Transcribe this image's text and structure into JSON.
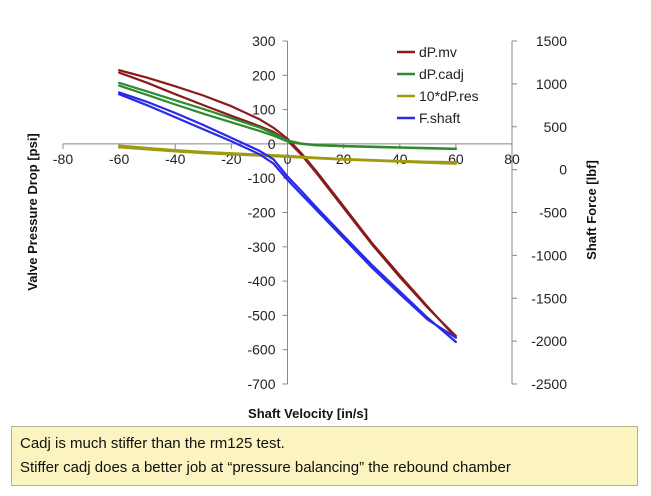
{
  "chart_data": {
    "type": "line",
    "xlabel": "Shaft Velocity [in/s]",
    "ylabel": "Valve Pressure Drop [psi]",
    "y2label": "Shaft Force [lbf]",
    "xlim": [
      -80,
      80
    ],
    "ylim": [
      -700,
      300
    ],
    "y2lim": [
      -2500,
      1500
    ],
    "x_ticks": [
      -80,
      -60,
      -40,
      -20,
      0,
      20,
      40,
      60,
      80
    ],
    "x_tick_labels": [
      "-80",
      "-60",
      "-40",
      "-20",
      "0",
      "20",
      "40",
      "60",
      "80"
    ],
    "y_ticks": [
      300,
      200,
      100,
      0,
      -100,
      -200,
      -300,
      -400,
      -500,
      -600,
      -700
    ],
    "y_tick_labels": [
      "300",
      "200",
      "100",
      "0",
      "-100",
      "-200",
      "-300",
      "-400",
      "-500",
      "-600",
      "-700"
    ],
    "y2_ticks": [
      1500,
      1000,
      500,
      0,
      -500,
      -1000,
      -1500,
      -2000,
      -2500
    ],
    "y2_tick_labels": [
      "1500",
      "1000",
      "500",
      "0",
      "-500",
      "-1000",
      "-1500",
      "-2000",
      "-2500"
    ],
    "grid": false,
    "legend_position": "top-right",
    "series": [
      {
        "name": "dP.mv",
        "color": "#8b1a1a",
        "axis": "left",
        "loops": [
          {
            "x": [
              -60,
              -50,
              -40,
              -30,
              -20,
              -10,
              -5,
              0,
              5,
              10,
              20,
              30,
              40,
              50,
              60
            ],
            "y": [
              215,
              193,
              168,
              141,
              110,
              72,
              47,
              15,
              -28,
              -77,
              -182,
              -288,
              -383,
              -475,
              -565
            ]
          },
          {
            "x": [
              -60,
              -50,
              -40,
              -30,
              -20,
              -10,
              -5,
              0,
              5,
              10,
              20,
              30,
              40,
              50,
              60
            ],
            "y": [
              208,
              178,
              145,
              113,
              82,
              52,
              35,
              10,
              -32,
              -82,
              -187,
              -292,
              -388,
              -478,
              -560
            ]
          }
        ]
      },
      {
        "name": "dP.cadj",
        "color": "#2e8b2e",
        "axis": "left",
        "loops": [
          {
            "x": [
              -60,
              -50,
              -40,
              -30,
              -20,
              -10,
              -5,
              0,
              5,
              10,
              20,
              30,
              40,
              50,
              60
            ],
            "y": [
              178,
              153,
              127,
              102,
              75,
              48,
              30,
              10,
              1,
              -3,
              -6,
              -8,
              -10,
              -12,
              -14
            ]
          },
          {
            "x": [
              -60,
              -50,
              -40,
              -30,
              -20,
              -10,
              -5,
              0,
              5,
              10,
              20,
              30,
              40,
              50,
              60
            ],
            "y": [
              170,
              143,
              115,
              88,
              63,
              38,
              24,
              7,
              0,
              -4,
              -7,
              -9,
              -11,
              -13,
              -15
            ]
          }
        ]
      },
      {
        "name": "10*dP.res",
        "color": "#a09a10",
        "axis": "left",
        "loops": [
          {
            "x": [
              -60,
              -50,
              -40,
              -30,
              -20,
              -10,
              0,
              10,
              20,
              30,
              40,
              50,
              60
            ],
            "y": [
              -5,
              -12,
              -18,
              -23,
              -27,
              -31,
              -35,
              -40,
              -44,
              -47,
              -50,
              -52,
              -53
            ]
          },
          {
            "x": [
              -60,
              -50,
              -40,
              -30,
              -20,
              -10,
              0,
              10,
              20,
              30,
              40,
              50,
              60
            ],
            "y": [
              -10,
              -16,
              -22,
              -27,
              -31,
              -34,
              -38,
              -42,
              -46,
              -49,
              -52,
              -55,
              -58
            ]
          }
        ]
      },
      {
        "name": "F.shaft",
        "color": "#2a2ae8",
        "axis": "right",
        "loops": [
          {
            "x": [
              -60,
              -50,
              -40,
              -30,
              -20,
              -10,
              -5,
              0,
              5,
              10,
              20,
              30,
              40,
              50,
              60
            ],
            "y": [
              900,
              790,
              660,
              520,
              370,
              220,
              120,
              -80,
              -250,
              -430,
              -770,
              -1110,
              -1420,
              -1730,
              -2010
            ]
          },
          {
            "x": [
              -60,
              -50,
              -40,
              -30,
              -20,
              -10,
              -5,
              0,
              5,
              10,
              20,
              30,
              40,
              50,
              60
            ],
            "y": [
              880,
              750,
              610,
              470,
              330,
              180,
              70,
              -120,
              -290,
              -460,
              -800,
              -1140,
              -1450,
              -1750,
              -1960
            ]
          }
        ]
      }
    ]
  },
  "note": {
    "line1": "Cadj is much stiffer than the rm125 test.",
    "line2": "Stiffer cadj does a better job at “pressure balancing” the rebound chamber"
  }
}
